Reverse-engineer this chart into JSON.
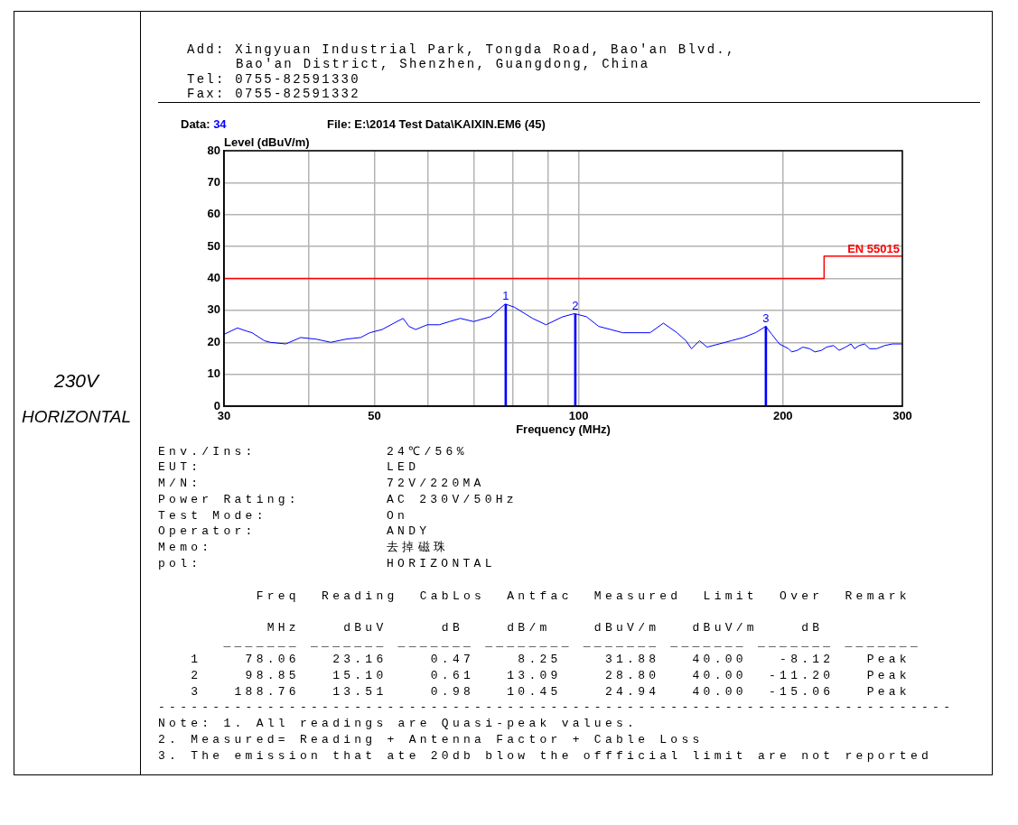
{
  "chart_data": {
    "type": "line",
    "xlabel": "Frequency (MHz)",
    "ylabel": "Level (dBuV/m)",
    "log": "x",
    "grid": true,
    "xlim": [
      30,
      300
    ],
    "xticks": [
      30,
      {
        "value": 40,
        "label": null
      },
      50,
      {
        "value": 60,
        "label": null
      },
      {
        "value": 70,
        "label": null
      },
      {
        "value": 80,
        "label": null
      },
      {
        "value": 90,
        "label": null
      },
      100,
      200,
      300
    ],
    "ylim": [
      0,
      80
    ],
    "yticks": [
      0,
      10,
      20,
      30,
      40,
      50,
      60,
      70,
      80
    ],
    "series": [
      {
        "color": "#0000ff",
        "x": [
          30,
          31.4,
          32.4,
          33,
          34.4,
          35.1,
          37,
          38.9,
          41,
          43.1,
          45.4,
          47.7,
          49.2,
          51.3,
          53.4,
          55.1,
          56.2,
          57.5,
          59.8,
          62.3,
          64.5,
          66.9,
          70,
          74.1,
          77.9,
          80.4,
          85.5,
          89.5,
          94.7,
          98.6,
          102.7,
          107,
          111.5,
          116.1,
          122.2,
          127.4,
          133.3,
          139.6,
          143.9,
          146.6,
          150.7,
          154.6,
          161.1,
          167.8,
          174.8,
          182.2,
          188.7,
          192.6,
          197.6,
          203.8,
          206,
          210.1,
          214,
          218.9,
          223,
          228,
          232,
          237.5,
          242,
          247.4,
          252,
          255,
          259.1,
          264,
          268.4,
          275,
          282.6,
          290,
          300
        ],
        "values": [
          22.5,
          24.5,
          23.5,
          23,
          20.5,
          20,
          19.5,
          21.5,
          21,
          20,
          21,
          21.5,
          23,
          24,
          26,
          27.5,
          25,
          24,
          25.5,
          25.5,
          26.5,
          27.5,
          26.5,
          28,
          32,
          31,
          27.5,
          25.5,
          28,
          29,
          28,
          25,
          24,
          23,
          23,
          23,
          26,
          23,
          20.5,
          18,
          20.5,
          18.5,
          19.5,
          20.5,
          21.5,
          23,
          25,
          22.5,
          19.5,
          18,
          17,
          17.5,
          18.5,
          18,
          17,
          17.5,
          18.5,
          19,
          17.5,
          18.5,
          19.5,
          18,
          19,
          19.5,
          18,
          18,
          19,
          19.5,
          19.5
        ]
      },
      {
        "type": "step",
        "name": "EN 55015",
        "color": "#ff0000",
        "x": [
          30,
          230,
          300
        ],
        "values": [
          40,
          47,
          47
        ]
      },
      {
        "type": "bar",
        "color": "#0000ff",
        "x": [
          78.06,
          98.85,
          188.76
        ],
        "values": [
          31.88,
          28.8,
          24.94
        ]
      }
    ],
    "annotations": [
      "230V",
      "HORIZONTAL",
      "Add: Xingyuan Industrial Park, Tongda Road, Bao'an Blvd.,",
      "Bao'an District, Shenzhen, Guangdong, China",
      "Tel: 0755-82591330",
      "Fax: 0755-82591332",
      "Data: 34",
      "File: E:\\2014 Test Data\\KAIXIN.EM6 (45)",
      "Env./Ins:",
      "24℃/56%",
      "EUT:",
      "LED",
      "M/N:",
      "72V/220MA",
      "Power Rating:",
      "AC 230V/50Hz",
      "Test Mode:",
      "On",
      "Operator:",
      "ANDY",
      "Memo:",
      "去掉磁珠",
      "pol:",
      "HORIZONTAL",
      "         Freq  Reading  CabLos  Antfac  Measured  Limit  Over  Remark",
      "          MHz    dBuV     dB    dB/m    dBuV/m   dBuV/m    dB",
      "      _______ _______ _______ ________ _______ _______ _______ _______",
      "   1    78.06   23.16    0.47    8.25    31.88   40.00   -8.12   Peak",
      "   2    98.85   15.10    0.61   13.09    28.80   40.00  -11.20   Peak",
      "   3   188.76   13.51    0.98   10.45    24.94   40.00  -15.06   Peak",
      "-------------------------------------------------------------------------",
      "Note: 1. All readings are Quasi-peak values.",
      "2. Measured= Reading + Antenna Factor + Cable Loss",
      "3. The emission that ate 20db blow the offficial limit are not reported",
      {
        "text": "1",
        "x": 78.06,
        "y": 31.88
      },
      {
        "text": "2",
        "x": 98.85,
        "y": 28.8
      },
      {
        "text": "3",
        "x": 188.76,
        "y": 24.94
      }
    ]
  }
}
